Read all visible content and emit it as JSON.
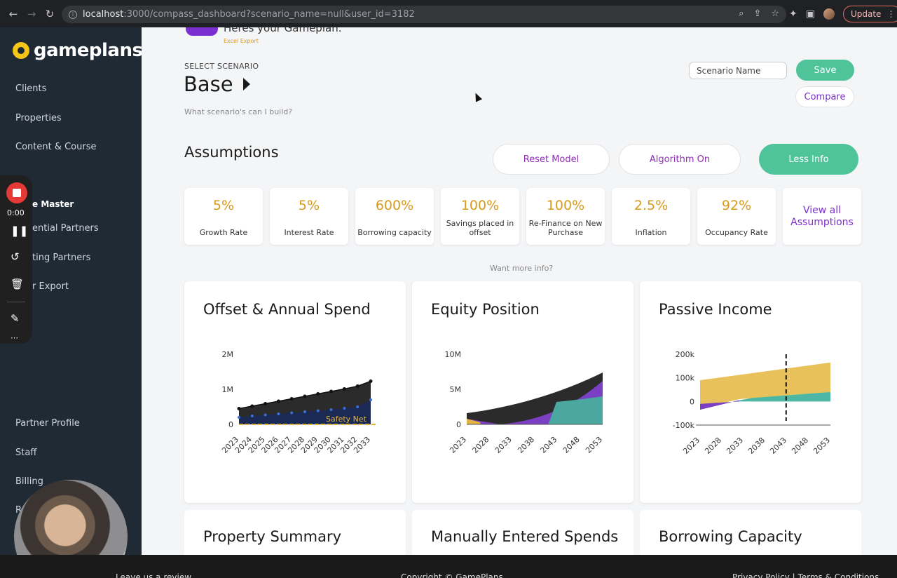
{
  "browser": {
    "url_host": "localhost",
    "url_rest": ":3000/compass_dashboard?scenario_name=null&user_id=3182",
    "update_label": "Update"
  },
  "sidebar": {
    "logo": "gameplans",
    "items": [
      "Clients",
      "Properties",
      "Content & Course"
    ],
    "section": "e Master",
    "sub_items": [
      "ential Partners",
      "ting Partners",
      "r Export"
    ],
    "bottom_items": [
      "Partner Profile",
      "Staff",
      "Billing",
      "R"
    ]
  },
  "recorder": {
    "time": "0:00"
  },
  "header": {
    "title": "Heres your Gameplan.",
    "excel": "Excel Export"
  },
  "scenario": {
    "label": "SELECT SCENARIO",
    "name": "Base",
    "subtitle": "What scenario's can I build?",
    "input_placeholder": "Scenario Name",
    "save": "Save",
    "compare": "Compare"
  },
  "assumptions": {
    "title": "Assumptions",
    "reset": "Reset Model",
    "algorithm": "Algorithm On",
    "less_info": "Less Info",
    "cards": [
      {
        "value": "5%",
        "label": "Growth Rate"
      },
      {
        "value": "5%",
        "label": "Interest Rate"
      },
      {
        "value": "600%",
        "label": "Borrowing capacity"
      },
      {
        "value": "100%",
        "label": "Savings placed in offset"
      },
      {
        "value": "100%",
        "label": "Re-Finance on New Purchase"
      },
      {
        "value": "2.5%",
        "label": "Inflation"
      },
      {
        "value": "92%",
        "label": "Occupancy Rate"
      }
    ],
    "view_all": "View all Assumptions",
    "more_info": "Want more info?"
  },
  "panels": {
    "offset": "Offset & Annual Spend",
    "equity": "Equity Position",
    "passive": "Passive Income",
    "property_summary": "Property Summary",
    "manual_spends": "Manually Entered Spends",
    "borrowing": "Borrowing Capacity"
  },
  "chart_data": [
    {
      "type": "line",
      "title": "Offset & Annual Spend",
      "x": [
        "2023",
        "2024",
        "2025",
        "2026",
        "2027",
        "2028",
        "2029",
        "2030",
        "2031",
        "2032",
        "2033"
      ],
      "y_ticks": [
        "2M",
        "1M",
        "0"
      ],
      "ylim": [
        0,
        2000000
      ],
      "series": [
        {
          "values": [
            450000,
            520000,
            590000,
            660000,
            730000,
            800000,
            870000,
            940000,
            1010000,
            1090000,
            1230000
          ]
        },
        {
          "values": [
            200000,
            240000,
            270000,
            300000,
            330000,
            360000,
            390000,
            420000,
            460000,
            500000,
            700000
          ]
        },
        {
          "name": "Safety Net",
          "values": [
            0,
            0,
            0,
            0,
            0,
            0,
            0,
            0,
            0,
            0,
            0
          ]
        }
      ],
      "colors": {
        "black": "#2b2b2b",
        "navy": "#1b2a55",
        "gold": "#e3b341",
        "blue": "#3a6fd8"
      }
    },
    {
      "type": "area",
      "title": "Equity Position",
      "x": [
        "2023",
        "2028",
        "2033",
        "2038",
        "2043",
        "2048",
        "2053"
      ],
      "y_ticks": [
        "10M",
        "5M",
        "0"
      ],
      "ylim": [
        0,
        10000000
      ],
      "colors": {
        "dark": "#2b2b2b",
        "purple": "#7b3fc4",
        "teal": "#4aa8a0",
        "gold": "#e3b341"
      }
    },
    {
      "type": "area",
      "title": "Passive Income",
      "x": [
        "2023",
        "2028",
        "2033",
        "2038",
        "2043",
        "2048",
        "2053"
      ],
      "y_ticks": [
        "200k",
        "100k",
        "0",
        "-100k"
      ],
      "ylim": [
        -100000,
        200000
      ],
      "colors": {
        "gold": "#e9c15a",
        "teal": "#4cb7a5",
        "purple": "#7b3fc4"
      }
    }
  ],
  "footer": {
    "left": "Leave us a review",
    "center": "Copyright © GamePlans",
    "right": "Privacy Policy | Terms & Conditions"
  }
}
